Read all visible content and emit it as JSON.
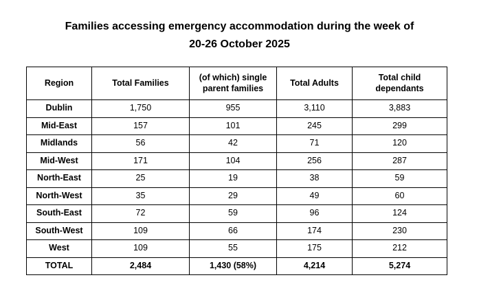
{
  "title": {
    "line1": "Families accessing emergency accommodation during the week of",
    "line2": "20-26 October 2025"
  },
  "table": {
    "columns": [
      "Region",
      "Total Families",
      "(of which) single parent families",
      "Total Adults",
      "Total child dependants"
    ],
    "rows": [
      [
        "Dublin",
        "1,750",
        "955",
        "3,110",
        "3,883"
      ],
      [
        "Mid-East",
        "157",
        "101",
        "245",
        "299"
      ],
      [
        "Midlands",
        "56",
        "42",
        "71",
        "120"
      ],
      [
        "Mid-West",
        "171",
        "104",
        "256",
        "287"
      ],
      [
        "North-East",
        "25",
        "19",
        "38",
        "59"
      ],
      [
        "North-West",
        "35",
        "29",
        "49",
        "60"
      ],
      [
        "South-East",
        "72",
        "59",
        "96",
        "124"
      ],
      [
        "South-West",
        "109",
        "66",
        "174",
        "230"
      ],
      [
        "West",
        "109",
        "55",
        "175",
        "212"
      ]
    ],
    "total_row": [
      "TOTAL",
      "2,484",
      "1,430 (58%)",
      "4,214",
      "5,274"
    ]
  },
  "colors": {
    "text": "#000000",
    "border": "#000000",
    "background": "#ffffff"
  }
}
